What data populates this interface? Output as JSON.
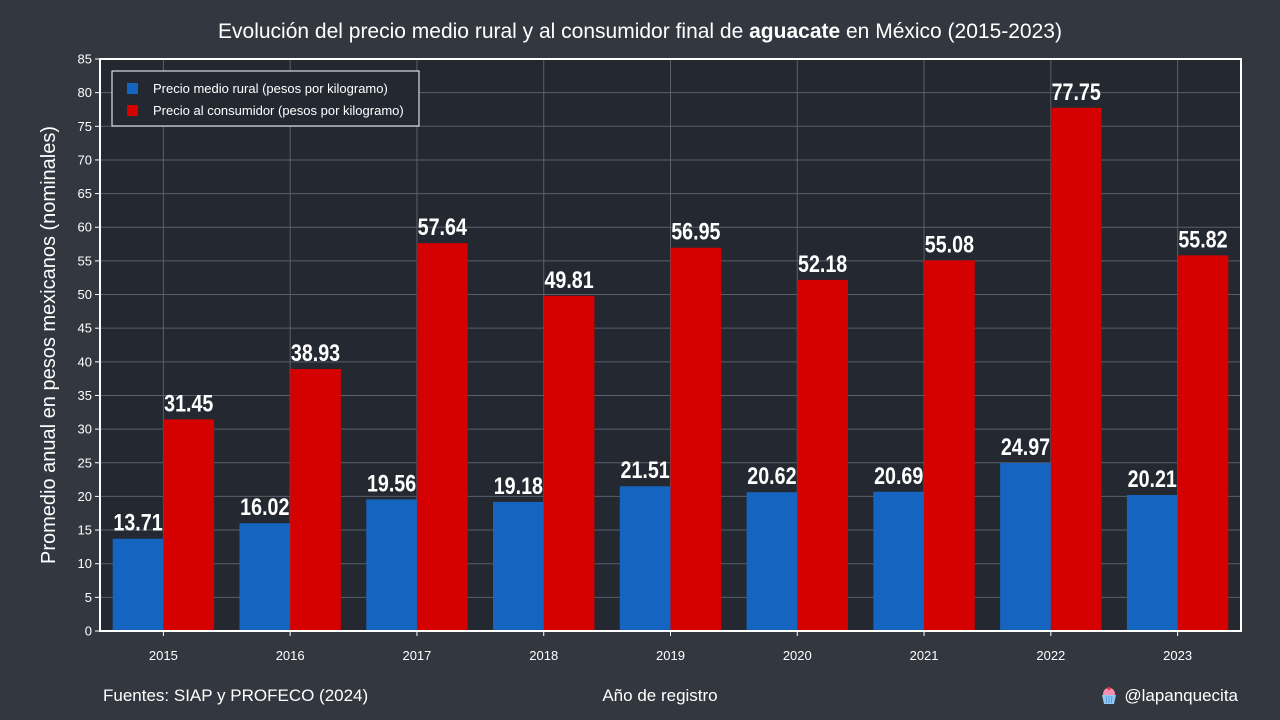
{
  "title": {
    "prefix": "Evolución del precio medio rural y al consumidor final de ",
    "bold": "aguacate",
    "suffix": " en México (2015-2023)"
  },
  "footer": {
    "source": "Fuentes: SIAP y PROFECO (2024)",
    "xlabel": "Año de registro",
    "handle": "@lapanquecita",
    "handle_icon": "cupcake-icon"
  },
  "colors": {
    "background": "#33373f",
    "plot_background": "#232831",
    "grid": "#5a5f6a",
    "rural": "#1565c0",
    "consumer": "#d50000",
    "text": "#ffffff"
  },
  "chart_data": {
    "type": "bar",
    "ylabel": "Promedio anual en pesos mexicanos (nominales)",
    "xlabel": "Año de registro",
    "categories": [
      "2015",
      "2016",
      "2017",
      "2018",
      "2019",
      "2020",
      "2021",
      "2022",
      "2023"
    ],
    "ylim": [
      0,
      85
    ],
    "yticks": [
      0,
      5,
      10,
      15,
      20,
      25,
      30,
      35,
      40,
      45,
      50,
      55,
      60,
      65,
      70,
      75,
      80,
      85
    ],
    "grid": true,
    "legend_position": "top-left",
    "series": [
      {
        "name": "Precio medio rural (pesos por kilogramo)",
        "color": "#1565c0",
        "values": [
          13.71,
          16.02,
          19.56,
          19.18,
          21.51,
          20.62,
          20.69,
          24.97,
          20.21
        ],
        "labels": [
          "13.71",
          "16.02",
          "19.56",
          "19.18",
          "21.51",
          "20.62",
          "20.69",
          "24.97",
          "20.21"
        ]
      },
      {
        "name": "Precio al consumidor (pesos por kilogramo)",
        "color": "#d50000",
        "values": [
          31.45,
          38.93,
          57.64,
          49.81,
          56.95,
          52.18,
          55.08,
          77.75,
          55.82
        ],
        "labels": [
          "31.45",
          "38.93",
          "57.64",
          "49.81",
          "56.95",
          "52.18",
          "55.08",
          "77.75",
          "55.82"
        ]
      }
    ]
  }
}
